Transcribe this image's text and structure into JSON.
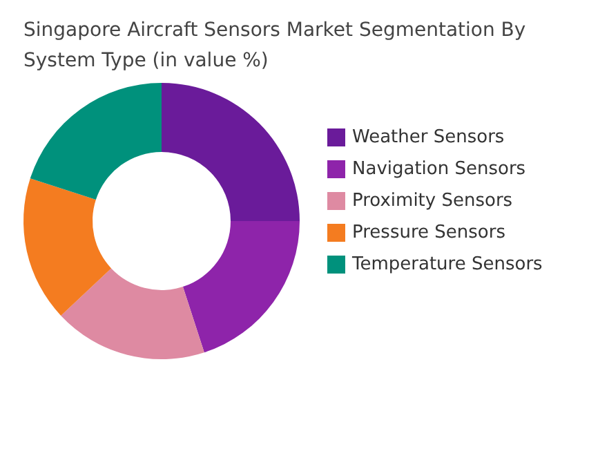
{
  "chart_data": {
    "type": "donut",
    "title": "Singapore Aircraft Sensors Market Segmentation By System Type (in value %)",
    "categories": [
      "Weather Sensors",
      "Navigation Sensors",
      "Proximity Sensors",
      "Pressure Sensors",
      "Temperature Sensors"
    ],
    "values": [
      25,
      20,
      18,
      17,
      20
    ],
    "colors": [
      "#6a1b9a",
      "#8e24aa",
      "#de8aa2",
      "#f47c20",
      "#00917c"
    ],
    "legend": "right"
  }
}
